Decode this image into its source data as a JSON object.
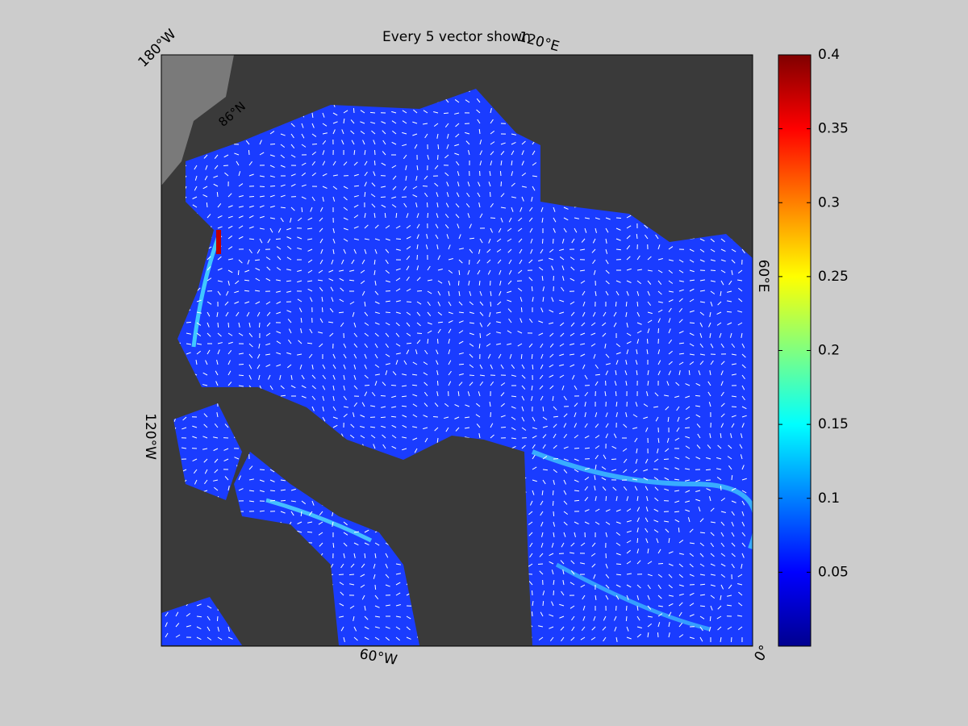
{
  "title": "Every 5 vector shown",
  "map_labels": [
    "180°W",
    "120°E",
    "60°E",
    "0°",
    "60°W",
    "120°W",
    "86°N"
  ],
  "colorbar": {
    "lim": [
      0,
      0.4
    ],
    "ticks": [
      0.05,
      0.1,
      0.15,
      0.2,
      0.25,
      0.3,
      0.35,
      0.4
    ],
    "colormap": [
      "#00008f",
      "#0000ff",
      "#0080ff",
      "#00ffff",
      "#80ff80",
      "#ffff00",
      "#ff8000",
      "#ff0000",
      "#800000"
    ]
  }
}
